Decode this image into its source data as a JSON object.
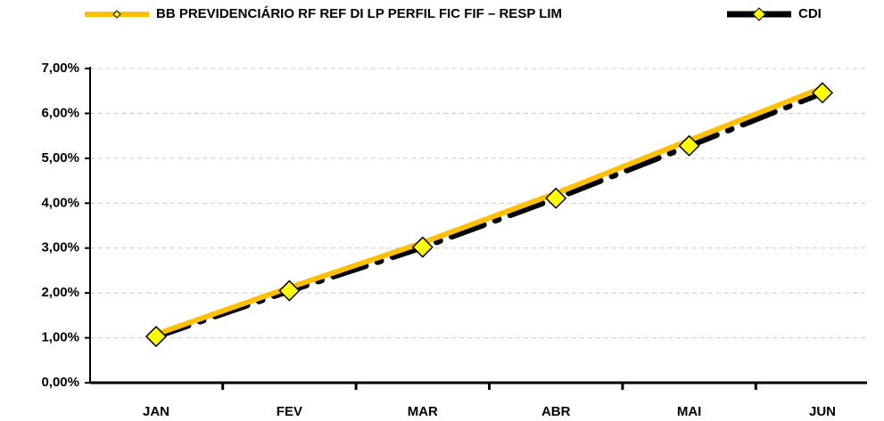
{
  "chart_data": {
    "type": "line",
    "categories": [
      "JAN",
      "FEV",
      "MAR",
      "ABR",
      "MAI",
      "JUN"
    ],
    "series": [
      {
        "name": "BB PREVIDENCIÁRIO RF REF DI LP PERFIL FIC FIF – RESP LIM",
        "color": "#ffc000",
        "values": [
          1.08,
          2.12,
          3.12,
          4.22,
          5.4,
          6.57
        ]
      },
      {
        "name": "CDI",
        "color": "#000000",
        "values": [
          1.03,
          2.05,
          3.02,
          4.11,
          5.28,
          6.46
        ]
      }
    ],
    "ylim": [
      0,
      7
    ],
    "yticks": [
      {
        "value": 0,
        "label": "0,00%"
      },
      {
        "value": 1,
        "label": "1,00%"
      },
      {
        "value": 2,
        "label": "2,00%"
      },
      {
        "value": 3,
        "label": "3,00%"
      },
      {
        "value": 4,
        "label": "4,00%"
      },
      {
        "value": 5,
        "label": "5,00%"
      },
      {
        "value": 6,
        "label": "6,00%"
      },
      {
        "value": 7,
        "label": "7,00%"
      }
    ],
    "grid": true,
    "legend": "top"
  }
}
